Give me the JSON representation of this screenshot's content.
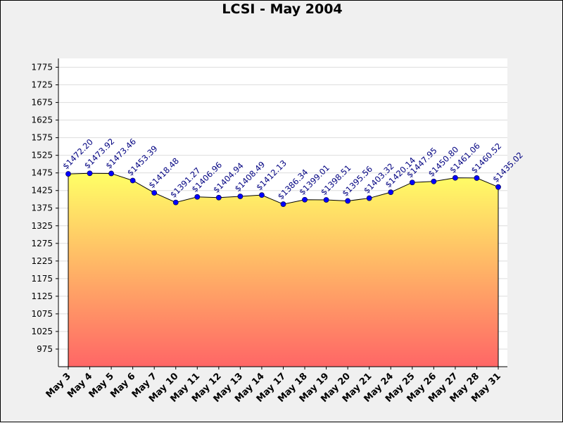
{
  "chart_data": {
    "type": "area",
    "title": "LCSI - May 2004",
    "xlabel": "",
    "ylabel": "",
    "ylim": [
      925,
      1800
    ],
    "yticks": [
      975,
      1025,
      1075,
      1125,
      1175,
      1225,
      1275,
      1325,
      1375,
      1425,
      1475,
      1525,
      1575,
      1625,
      1675,
      1725,
      1775
    ],
    "grid": true,
    "categories": [
      "May 3",
      "May 4",
      "May 5",
      "May 6",
      "May 7",
      "May 10",
      "May 11",
      "May 12",
      "May 13",
      "May 14",
      "May 17",
      "May 18",
      "May 19",
      "May 20",
      "May 21",
      "May 24",
      "May 25",
      "May 26",
      "May 27",
      "May 28",
      "May 31"
    ],
    "series": [
      {
        "values": [
          1472.2,
          1473.92,
          1473.46,
          1453.39,
          1418.48,
          1391.27,
          1406.96,
          1404.94,
          1408.49,
          1412.13,
          1386.34,
          1399.01,
          1398.51,
          1395.56,
          1403.32,
          1420.14,
          1447.95,
          1450.8,
          1461.06,
          1460.52,
          1435.02
        ],
        "labels": [
          "$1472.20",
          "$1473.92",
          "$1473.46",
          "$1453.39",
          "$1418.48",
          "$1391.27",
          "$1406.96",
          "$1404.94",
          "$1408.49",
          "$1412.13",
          "$1386.34",
          "$1399.01",
          "$1398.51",
          "$1395.56",
          "$1403.32",
          "$1420.14",
          "$1447.95",
          "$1450.80",
          "$1461.06",
          "$1460.52",
          "$1435.02"
        ]
      }
    ],
    "colors": {
      "fill_top": "#ffff66",
      "fill_bottom": "#ff6666",
      "line": "#000000",
      "marker": "#0000ff",
      "label": "#000080",
      "grid": "#dddddd",
      "plot_bg": "#ffffff",
      "frame_bg": "#f0f0f0"
    }
  }
}
